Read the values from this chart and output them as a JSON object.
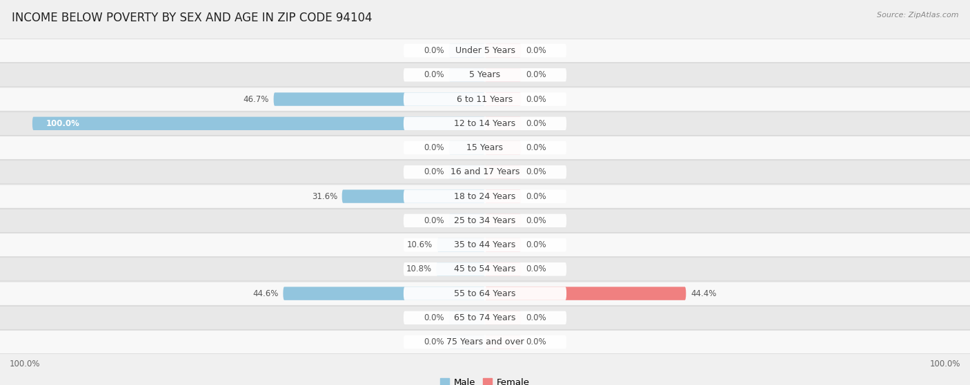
{
  "title": "INCOME BELOW POVERTY BY SEX AND AGE IN ZIP CODE 94104",
  "source": "Source: ZipAtlas.com",
  "categories": [
    "Under 5 Years",
    "5 Years",
    "6 to 11 Years",
    "12 to 14 Years",
    "15 Years",
    "16 and 17 Years",
    "18 to 24 Years",
    "25 to 34 Years",
    "35 to 44 Years",
    "45 to 54 Years",
    "55 to 64 Years",
    "65 to 74 Years",
    "75 Years and over"
  ],
  "male_values": [
    0.0,
    0.0,
    46.7,
    100.0,
    0.0,
    0.0,
    31.6,
    0.0,
    10.6,
    10.8,
    44.6,
    0.0,
    0.0
  ],
  "female_values": [
    0.0,
    0.0,
    0.0,
    0.0,
    0.0,
    0.0,
    0.0,
    0.0,
    0.0,
    0.0,
    44.4,
    0.0,
    0.0
  ],
  "male_color": "#92C5DE",
  "female_color": "#F08080",
  "male_color_light": "#BDD9EC",
  "female_color_light": "#F4B8C0",
  "male_label": "Male",
  "female_label": "Female",
  "xlim": 105,
  "bar_height": 0.55,
  "stub_size": 8.0,
  "background_color": "#f0f0f0",
  "row_color_light": "#f8f8f8",
  "row_color_dark": "#e8e8e8",
  "title_fontsize": 12,
  "label_fontsize": 9,
  "value_fontsize": 8.5,
  "legend_fontsize": 9.5,
  "axis_label_fontsize": 8.5
}
